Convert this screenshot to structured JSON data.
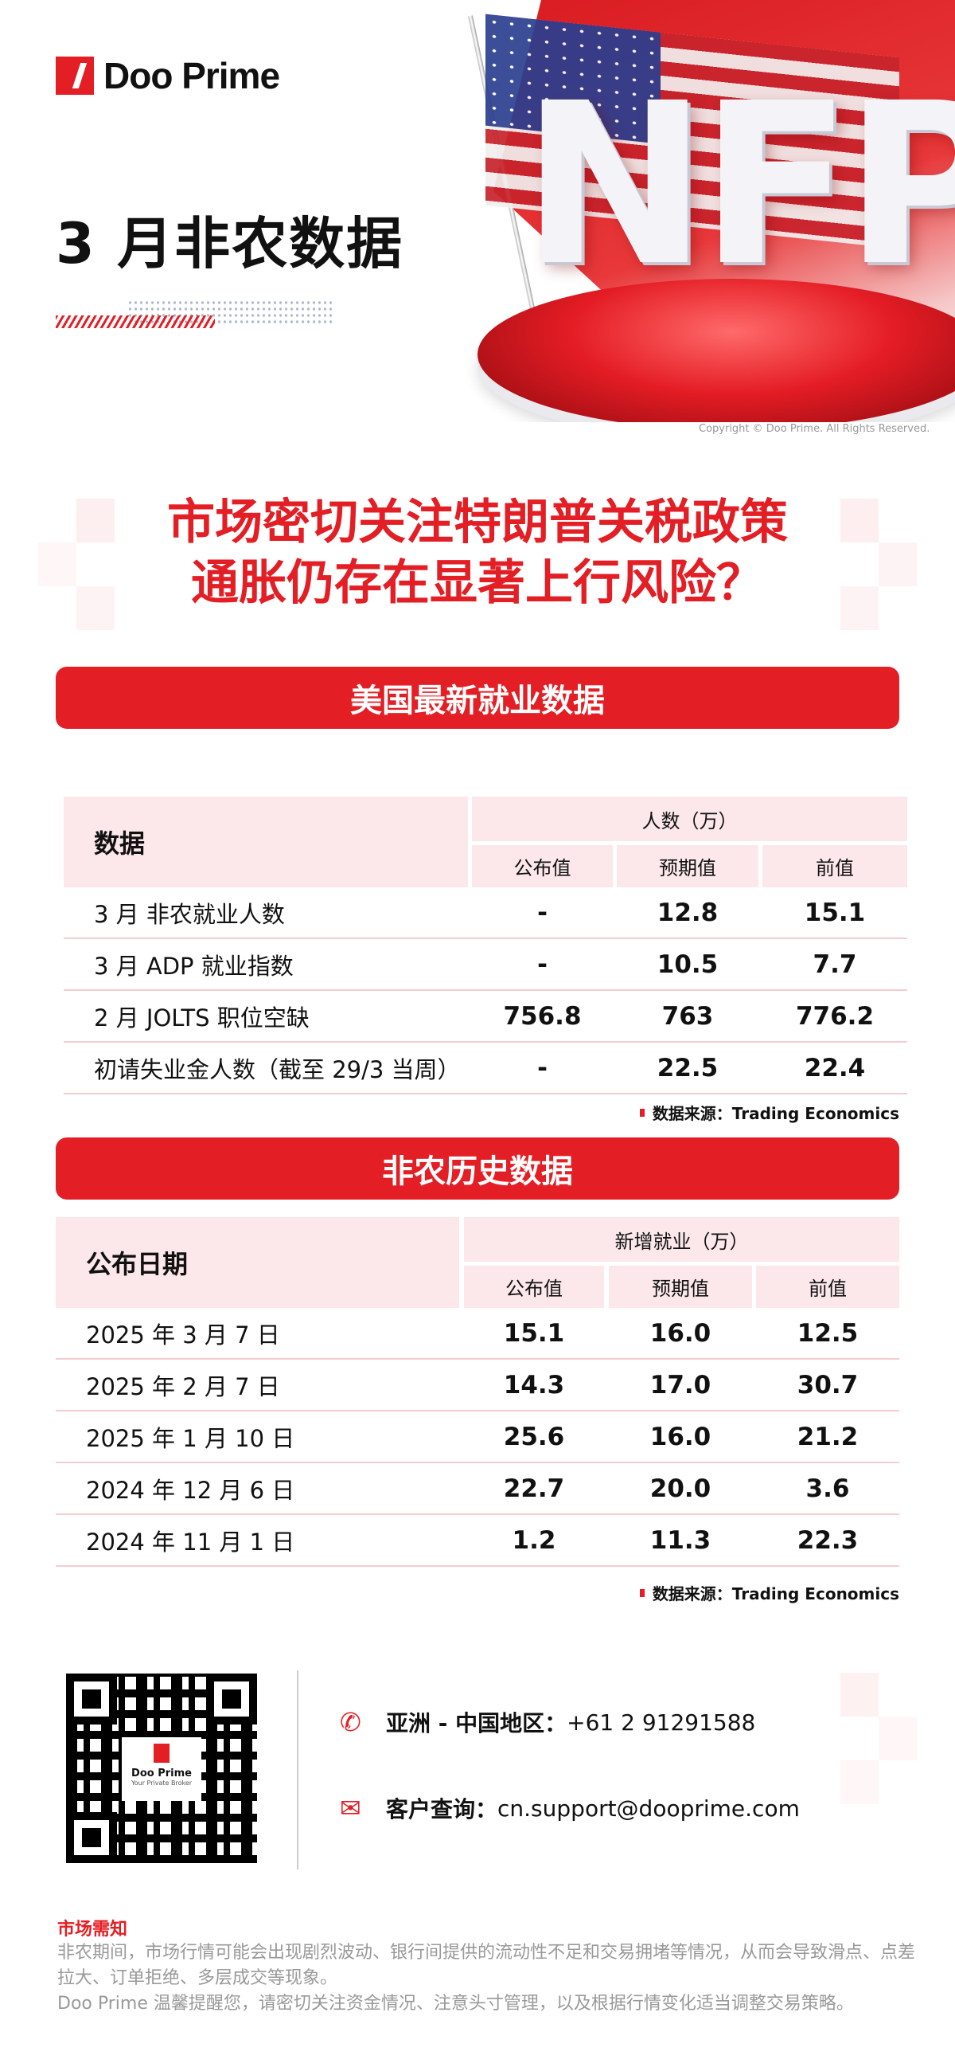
{
  "brand": {
    "name": "Doo Prime",
    "qr_tagline": "Your Private Broker"
  },
  "hero": {
    "art_text": "NFP",
    "copyright": "Copyright © Doo Prime. All Rights Reserved."
  },
  "title": "3 月非农数据",
  "headline": {
    "line1": "市场密切关注特朗普关税政策",
    "line2": "通胀仍存在显著上行风险？"
  },
  "colors": {
    "accent": "#e31e24",
    "header_bg": "#fce8ea"
  },
  "section1": {
    "banner": "美国最新就业数据",
    "header": {
      "label": "数据",
      "group": "人数（万）",
      "cols": [
        "公布值",
        "预期值",
        "前值"
      ]
    },
    "rows": [
      {
        "label": "3 月 非农就业人数",
        "values": [
          "-",
          "12.8",
          "15.1"
        ]
      },
      {
        "label": "3 月 ADP 就业指数",
        "values": [
          "-",
          "10.5",
          "7.7"
        ]
      },
      {
        "label": "2 月 JOLTS 职位空缺",
        "values": [
          "756.8",
          "763",
          "776.2"
        ]
      },
      {
        "label": "初请失业金人数（截至 29/3 当周）",
        "values": [
          "-",
          "22.5",
          "22.4"
        ]
      }
    ],
    "source": "数据来源：Trading Economics"
  },
  "section2": {
    "banner": "非农历史数据",
    "header": {
      "label": "公布日期",
      "group": "新增就业（万）",
      "cols": [
        "公布值",
        "预期值",
        "前值"
      ]
    },
    "rows": [
      {
        "label": "2025 年 3 月 7 日",
        "values": [
          "15.1",
          "16.0",
          "12.5"
        ]
      },
      {
        "label": "2025 年 2 月 7 日",
        "values": [
          "14.3",
          "17.0",
          "30.7"
        ]
      },
      {
        "label": "2025 年 1 月 10 日",
        "values": [
          "25.6",
          "16.0",
          "21.2"
        ]
      },
      {
        "label": "2024 年 12 月 6 日",
        "values": [
          "22.7",
          "20.0",
          "3.6"
        ]
      },
      {
        "label": "2024 年 11 月 1 日",
        "values": [
          "1.2",
          "11.3",
          "22.3"
        ]
      }
    ],
    "source": "数据来源：Trading Economics"
  },
  "contact": {
    "phone_label": "亚洲 - 中国地区：",
    "phone": "+61 2 91291588",
    "phone_icon": "phone-icon",
    "email_label": "客户查询：",
    "email": "cn.support@dooprime.com",
    "email_icon": "mail-icon"
  },
  "notice": {
    "title": "市场需知",
    "line1": "非农期间，市场行情可能会出现剧烈波动、银行间提供的流动性不足和交易拥堵等情况，从而会导致滑点、点差拉大、订单拒绝、多层成交等现象。",
    "line2": "Doo Prime 温馨提醒您，请密切关注资金情况、注意头寸管理，以及根据行情变化适当调整交易策略。"
  }
}
